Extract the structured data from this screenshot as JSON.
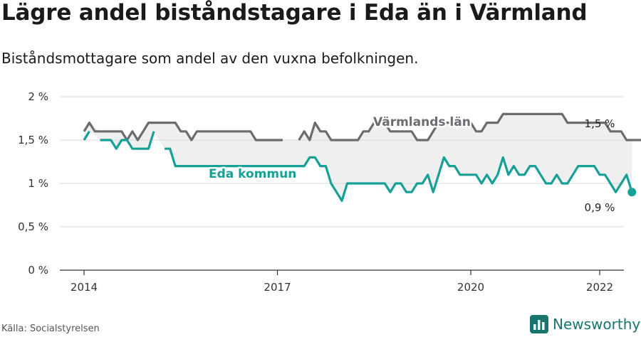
{
  "header": {
    "title": "Lägre andel biståndstagare i Eda än i Värmland",
    "subtitle": "Biståndsmottagare som andel av den vuxna befolkningen."
  },
  "footer": {
    "source": "Källa: Socialstyrelsen",
    "brand": "Newsworthy"
  },
  "colors": {
    "varmland": "#6b6b70",
    "eda": "#16a096",
    "band": "#efefef",
    "grid": "#d9d9d9",
    "brand": "#17756d"
  },
  "chart_data": {
    "type": "line",
    "x_unit": "month",
    "xlim": [
      "2014-01",
      "2022-12"
    ],
    "ylim": [
      0,
      2
    ],
    "y_ticks": [
      {
        "v": 0,
        "label": "0 %"
      },
      {
        "v": 0.5,
        "label": "0,5 %"
      },
      {
        "v": 1,
        "label": "1 %"
      },
      {
        "v": 1.5,
        "label": "1,5 %"
      },
      {
        "v": 2,
        "label": "2 %"
      }
    ],
    "x_ticks": [
      {
        "v": "2014-01",
        "label": "2014"
      },
      {
        "v": "2017-01",
        "label": "2017"
      },
      {
        "v": "2020-01",
        "label": "2020"
      },
      {
        "v": "2022-01",
        "label": "2022"
      }
    ],
    "grid": true,
    "series": [
      {
        "name": "Värmlands län",
        "color": "#6b6b70",
        "end_label": "1,5 %",
        "start": "2014-01",
        "values": [
          1.6,
          1.7,
          1.6,
          1.6,
          1.6,
          1.6,
          1.6,
          1.6,
          1.5,
          1.6,
          1.5,
          1.6,
          1.7,
          1.7,
          1.7,
          1.7,
          1.7,
          1.7,
          1.6,
          1.6,
          1.5,
          1.6,
          1.6,
          1.6,
          1.6,
          1.6,
          1.6,
          1.6,
          1.6,
          1.6,
          1.6,
          1.6,
          1.5,
          1.5,
          1.5,
          1.5,
          1.5,
          1.5,
          null,
          null,
          1.5,
          1.6,
          1.5,
          1.7,
          1.6,
          1.6,
          1.5,
          1.5,
          1.5,
          1.5,
          1.5,
          1.5,
          1.6,
          1.6,
          1.7,
          1.7,
          1.7,
          1.6,
          1.6,
          1.6,
          1.6,
          1.6,
          1.5,
          1.5,
          1.5,
          1.6,
          1.7,
          1.7,
          1.7,
          1.7,
          1.7,
          1.7,
          1.7,
          1.6,
          1.6,
          1.7,
          1.7,
          1.7,
          1.8,
          1.8,
          1.8,
          1.8,
          1.8,
          1.8,
          1.8,
          1.8,
          1.8,
          1.8,
          1.8,
          1.8,
          1.7,
          1.7,
          1.7,
          1.7,
          1.7,
          1.7,
          1.7,
          1.7,
          1.6,
          1.6,
          1.6,
          1.5,
          1.5,
          1.5,
          1.5,
          1.5,
          1.5
        ]
      },
      {
        "name": "Eda kommun",
        "color": "#16a096",
        "end_label": "0,9 %",
        "start": "2014-01",
        "values": [
          1.5,
          1.6,
          null,
          1.5,
          1.5,
          1.5,
          1.4,
          1.5,
          1.5,
          1.4,
          1.4,
          1.4,
          1.4,
          1.6,
          null,
          1.4,
          1.4,
          1.2,
          1.2,
          1.2,
          1.2,
          1.2,
          1.2,
          1.2,
          1.2,
          1.2,
          1.2,
          1.2,
          1.2,
          1.2,
          1.2,
          1.2,
          1.2,
          1.2,
          1.2,
          1.2,
          1.2,
          1.2,
          1.2,
          1.2,
          1.2,
          1.2,
          1.3,
          1.3,
          1.2,
          1.2,
          1.0,
          0.9,
          0.8,
          1.0,
          1.0,
          1.0,
          1.0,
          1.0,
          1.0,
          1.0,
          1.0,
          0.9,
          1.0,
          1.0,
          0.9,
          0.9,
          1.0,
          1.0,
          1.1,
          0.9,
          1.1,
          1.3,
          1.2,
          1.2,
          1.1,
          1.1,
          1.1,
          1.1,
          1.0,
          1.1,
          1.0,
          1.1,
          1.3,
          1.1,
          1.2,
          1.1,
          1.1,
          1.2,
          1.2,
          1.1,
          1.0,
          1.0,
          1.1,
          1.0,
          1.0,
          1.1,
          1.2,
          1.2,
          1.2,
          1.2,
          1.1,
          1.1,
          1.0,
          0.9,
          1.0,
          1.1,
          0.9
        ]
      }
    ]
  }
}
